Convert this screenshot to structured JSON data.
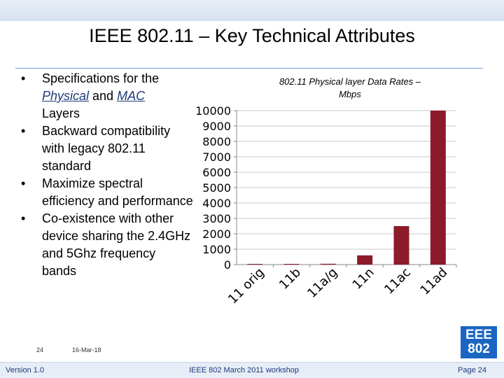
{
  "title": "IEEE 802.11 – Key Technical Attributes",
  "bullets": [
    {
      "parts": [
        "Specifications for the ",
        "Physical",
        " and ",
        "MAC",
        " Layers"
      ]
    },
    {
      "text": "Backward compatibility with legacy 802.11 standard"
    },
    {
      "text": "Maximize spectral efficiency and performance"
    },
    {
      "text": "Co-existence with other device sharing the 2.4GHz and 5Ghz frequency bands"
    }
  ],
  "bullet_symbol": "•",
  "footer": {
    "page_num": "24",
    "date": "16-Mar-18",
    "version": "Version 1.0",
    "workshop": "IEEE 802 March 2011 workshop",
    "page": "Page 24",
    "logo_line1": "EEE",
    "logo_line2": "802"
  },
  "chart_data": {
    "type": "bar",
    "title": "802.11 Physical layer Data Rates – Mbps",
    "categories": [
      "11 orig",
      "11b",
      "11a/g",
      "11n",
      "11ac",
      "11ad"
    ],
    "values": [
      2,
      11,
      54,
      600,
      2500,
      10000
    ],
    "ylim": [
      0,
      10000
    ],
    "yticks": [
      "0",
      "1000",
      "2000",
      "3000",
      "4000",
      "5000",
      "6000",
      "7000",
      "8000",
      "9000",
      "10000"
    ],
    "bar_color": "#8b1a2b",
    "grid": true,
    "legend": "none"
  }
}
